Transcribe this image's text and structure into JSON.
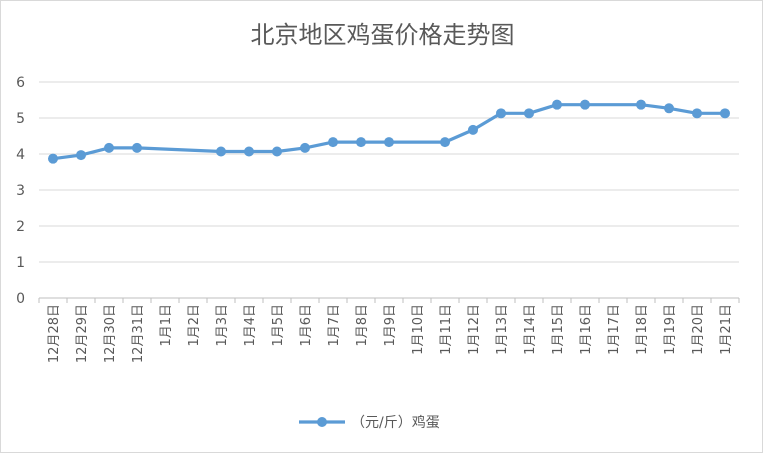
{
  "chart_data": {
    "type": "line",
    "title": "北京地区鸡蛋价格走势图",
    "xlabel": "",
    "ylabel": "",
    "ylim": [
      0,
      6
    ],
    "yticks": [
      0,
      1,
      2,
      3,
      4,
      5,
      6
    ],
    "grid": true,
    "legend_position": "bottom",
    "categories": [
      "12月28日",
      "12月29日",
      "12月30日",
      "12月31日",
      "1月1日",
      "1月2日",
      "1月3日",
      "1月4日",
      "1月5日",
      "1月6日",
      "1月7日",
      "1月8日",
      "1月9日",
      "1月10日",
      "1月11日",
      "1月12日",
      "1月13日",
      "1月14日",
      "1月15日",
      "1月16日",
      "1月17日",
      "1月18日",
      "1月19日",
      "1月20日",
      "1月21日"
    ],
    "series": [
      {
        "name": "（元/斤）鸡蛋",
        "color": "#5b9bd5",
        "values": [
          3.87,
          3.97,
          4.17,
          4.17,
          null,
          null,
          4.07,
          4.07,
          4.07,
          4.17,
          4.33,
          4.33,
          4.33,
          null,
          4.33,
          4.67,
          5.13,
          5.13,
          5.37,
          5.37,
          null,
          5.37,
          5.27,
          5.13,
          5.13
        ]
      }
    ]
  }
}
